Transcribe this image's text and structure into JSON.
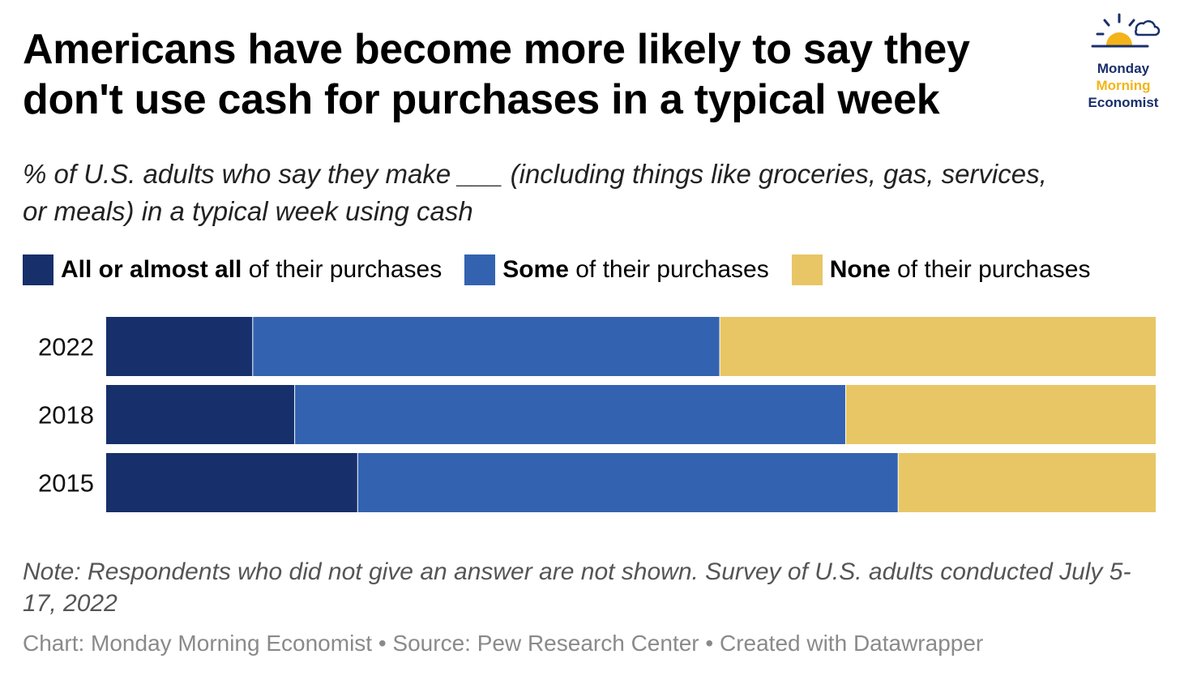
{
  "title": {
    "line1": "Americans have become more likely to say they",
    "line2": "don't use cash for purchases in a typical week"
  },
  "subtitle": {
    "line1": "% of U.S. adults who say they make ___ (including things like groceries, gas, services,",
    "line2": "or meals) in a typical week using cash"
  },
  "logo": {
    "word1": "Monday",
    "word2": "Morning",
    "word3": "Economist",
    "colors": {
      "navy": "#1a2f6b",
      "gold": "#f3b419"
    }
  },
  "legend": [
    {
      "bold": "All or almost all",
      "rest": " of their purchases",
      "color": "#172f6a"
    },
    {
      "bold": "Some",
      "rest": " of their purchases",
      "color": "#3363b0"
    },
    {
      "bold": "None",
      "rest": " of their purchases",
      "color": "#e8c665"
    }
  ],
  "chart_data": {
    "type": "bar",
    "orientation": "horizontal",
    "stacked": true,
    "categories": [
      "2022",
      "2018",
      "2015"
    ],
    "series": [
      {
        "name": "All or almost all of their purchases",
        "color": "#172f6a",
        "values": [
          14,
          18,
          24
        ]
      },
      {
        "name": "Some of their purchases",
        "color": "#3363b0",
        "values": [
          44.5,
          52.5,
          51.5
        ]
      },
      {
        "name": "None of their purchases",
        "color": "#e8c665",
        "values": [
          41.5,
          29.5,
          24.5
        ]
      }
    ],
    "xlim": [
      0,
      100
    ],
    "title": "Americans have become more likely to say they don't use cash for purchases in a typical week",
    "xlabel": "",
    "ylabel": "",
    "grid": false,
    "legend_position": "top"
  },
  "note": "Note: Respondents who did not give an answer are not shown. Survey of U.S. adults conducted July 5-17, 2022",
  "credit": "Chart: Monday Morning Economist • Source: Pew Research Center • Created with Datawrapper"
}
